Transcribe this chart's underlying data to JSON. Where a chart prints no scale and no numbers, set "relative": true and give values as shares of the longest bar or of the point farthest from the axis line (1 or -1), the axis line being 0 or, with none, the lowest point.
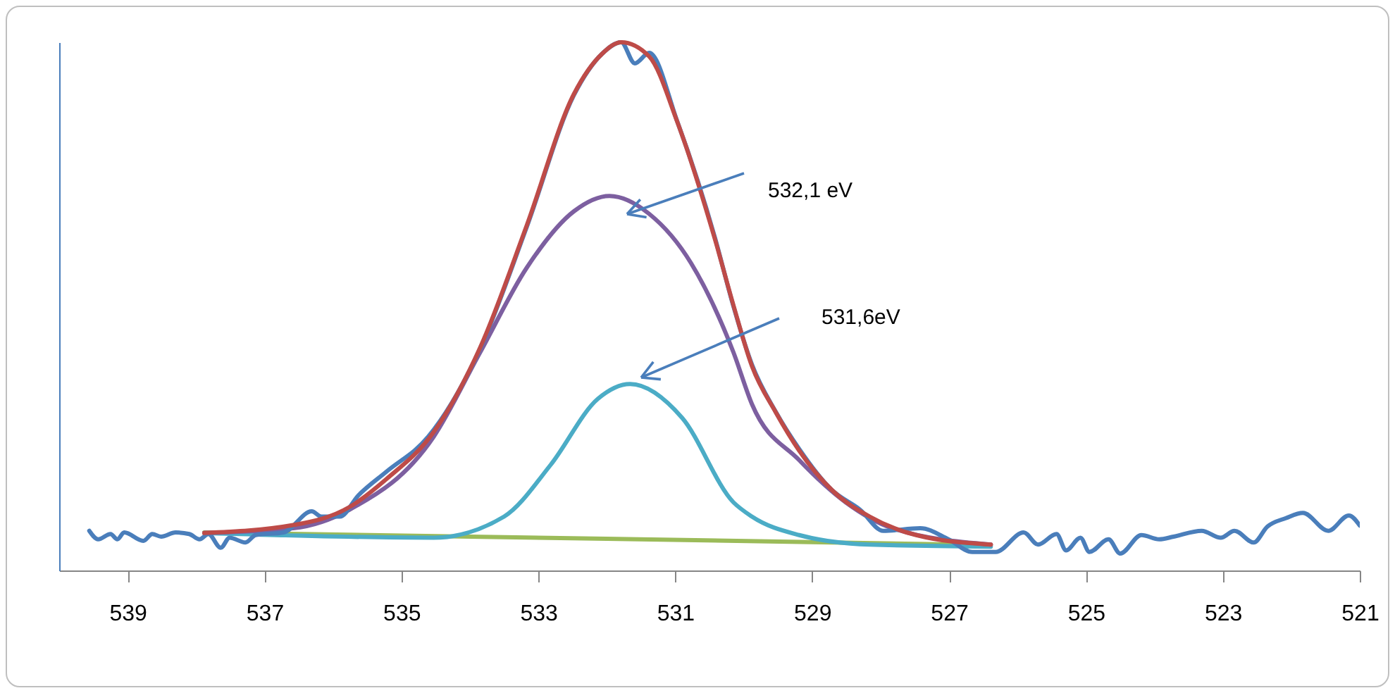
{
  "chart_data": {
    "type": "line",
    "relative": true,
    "xlim": [
      540,
      521
    ],
    "xticks": [
      539,
      537,
      535,
      533,
      531,
      529,
      527,
      525,
      523,
      521
    ],
    "tick_labels": "x",
    "grid": false,
    "legend": false,
    "annotations": [
      "532,1 eV",
      "531,6eV"
    ],
    "series": [
      {
        "color": "#9bbb59",
        "x": [
          537.88,
          532,
          526.39
        ],
        "values": [
          0.072,
          0.06,
          0.048
        ]
      },
      {
        "color": "#4bacc6",
        "x": [
          537.88,
          534.53,
          533.5,
          532.82,
          532.13,
          531.66,
          530.9,
          530.15,
          529.88,
          529.19,
          528.16,
          526.39
        ],
        "values": [
          0.071,
          0.062,
          0.102,
          0.2,
          0.325,
          0.353,
          0.289,
          0.129,
          0.102,
          0.067,
          0.049,
          0.045
        ]
      },
      {
        "color": "#7d5fa0",
        "x": [
          537.88,
          536.58,
          535.76,
          534.53,
          533.85,
          533.17,
          532.48,
          531.96,
          531.38,
          530.77,
          530.15,
          529.88,
          529.19,
          528.51,
          527.83,
          526.39
        ],
        "values": [
          0.071,
          0.08,
          0.115,
          0.253,
          0.413,
          0.573,
          0.68,
          0.709,
          0.675,
          0.582,
          0.413,
          0.315,
          0.209,
          0.129,
          0.08,
          0.049
        ]
      },
      {
        "color": "#4a7ebb",
        "x": [
          539.56,
          539.43,
          539.25,
          539.15,
          539.05,
          538.77,
          538.64,
          538.51,
          538.3,
          538.1,
          537.95,
          537.82,
          537.64,
          537.51,
          537.28,
          537.13,
          536.72,
          536.31,
          536.17,
          535.9,
          535.63,
          535.22,
          534.61,
          533.85,
          533.17,
          532.48,
          532.07,
          531.79,
          531.59,
          531.38,
          530.97,
          530.42,
          530.15,
          529.88,
          529.53,
          529.19,
          528.71,
          528.3,
          527.96,
          527.42,
          527.01,
          526.66,
          526.32,
          525.91,
          525.7,
          525.43,
          525.29,
          525.08,
          524.95,
          524.67,
          524.5,
          524.19,
          523.93,
          523.72,
          523.31,
          523.03,
          522.83,
          522.55,
          522.35,
          522.08,
          521.83,
          521.46,
          521.16,
          521.0
        ],
        "values": [
          0.075,
          0.059,
          0.069,
          0.059,
          0.072,
          0.056,
          0.069,
          0.064,
          0.072,
          0.069,
          0.059,
          0.069,
          0.043,
          0.062,
          0.053,
          0.067,
          0.072,
          0.112,
          0.102,
          0.102,
          0.142,
          0.187,
          0.253,
          0.42,
          0.65,
          0.9,
          0.978,
          1.0,
          0.96,
          0.98,
          0.85,
          0.63,
          0.5,
          0.39,
          0.3,
          0.23,
          0.152,
          0.115,
          0.075,
          0.08,
          0.059,
          0.035,
          0.035,
          0.072,
          0.049,
          0.069,
          0.038,
          0.062,
          0.035,
          0.059,
          0.032,
          0.067,
          0.059,
          0.064,
          0.075,
          0.062,
          0.075,
          0.053,
          0.083,
          0.099,
          0.109,
          0.075,
          0.104,
          0.085
        ]
      },
      {
        "color": "#be4b48",
        "x": [
          537.88,
          536.58,
          535.76,
          535.22,
          534.53,
          533.85,
          533.17,
          532.48,
          532.07,
          531.79,
          531.38,
          530.97,
          530.42,
          530.15,
          529.88,
          529.53,
          529.19,
          528.71,
          528.16,
          527.48,
          526.39
        ],
        "values": [
          0.071,
          0.086,
          0.12,
          0.173,
          0.262,
          0.422,
          0.653,
          0.902,
          0.978,
          1.0,
          0.973,
          0.849,
          0.627,
          0.502,
          0.387,
          0.299,
          0.227,
          0.152,
          0.102,
          0.067,
          0.049
        ]
      }
    ]
  }
}
